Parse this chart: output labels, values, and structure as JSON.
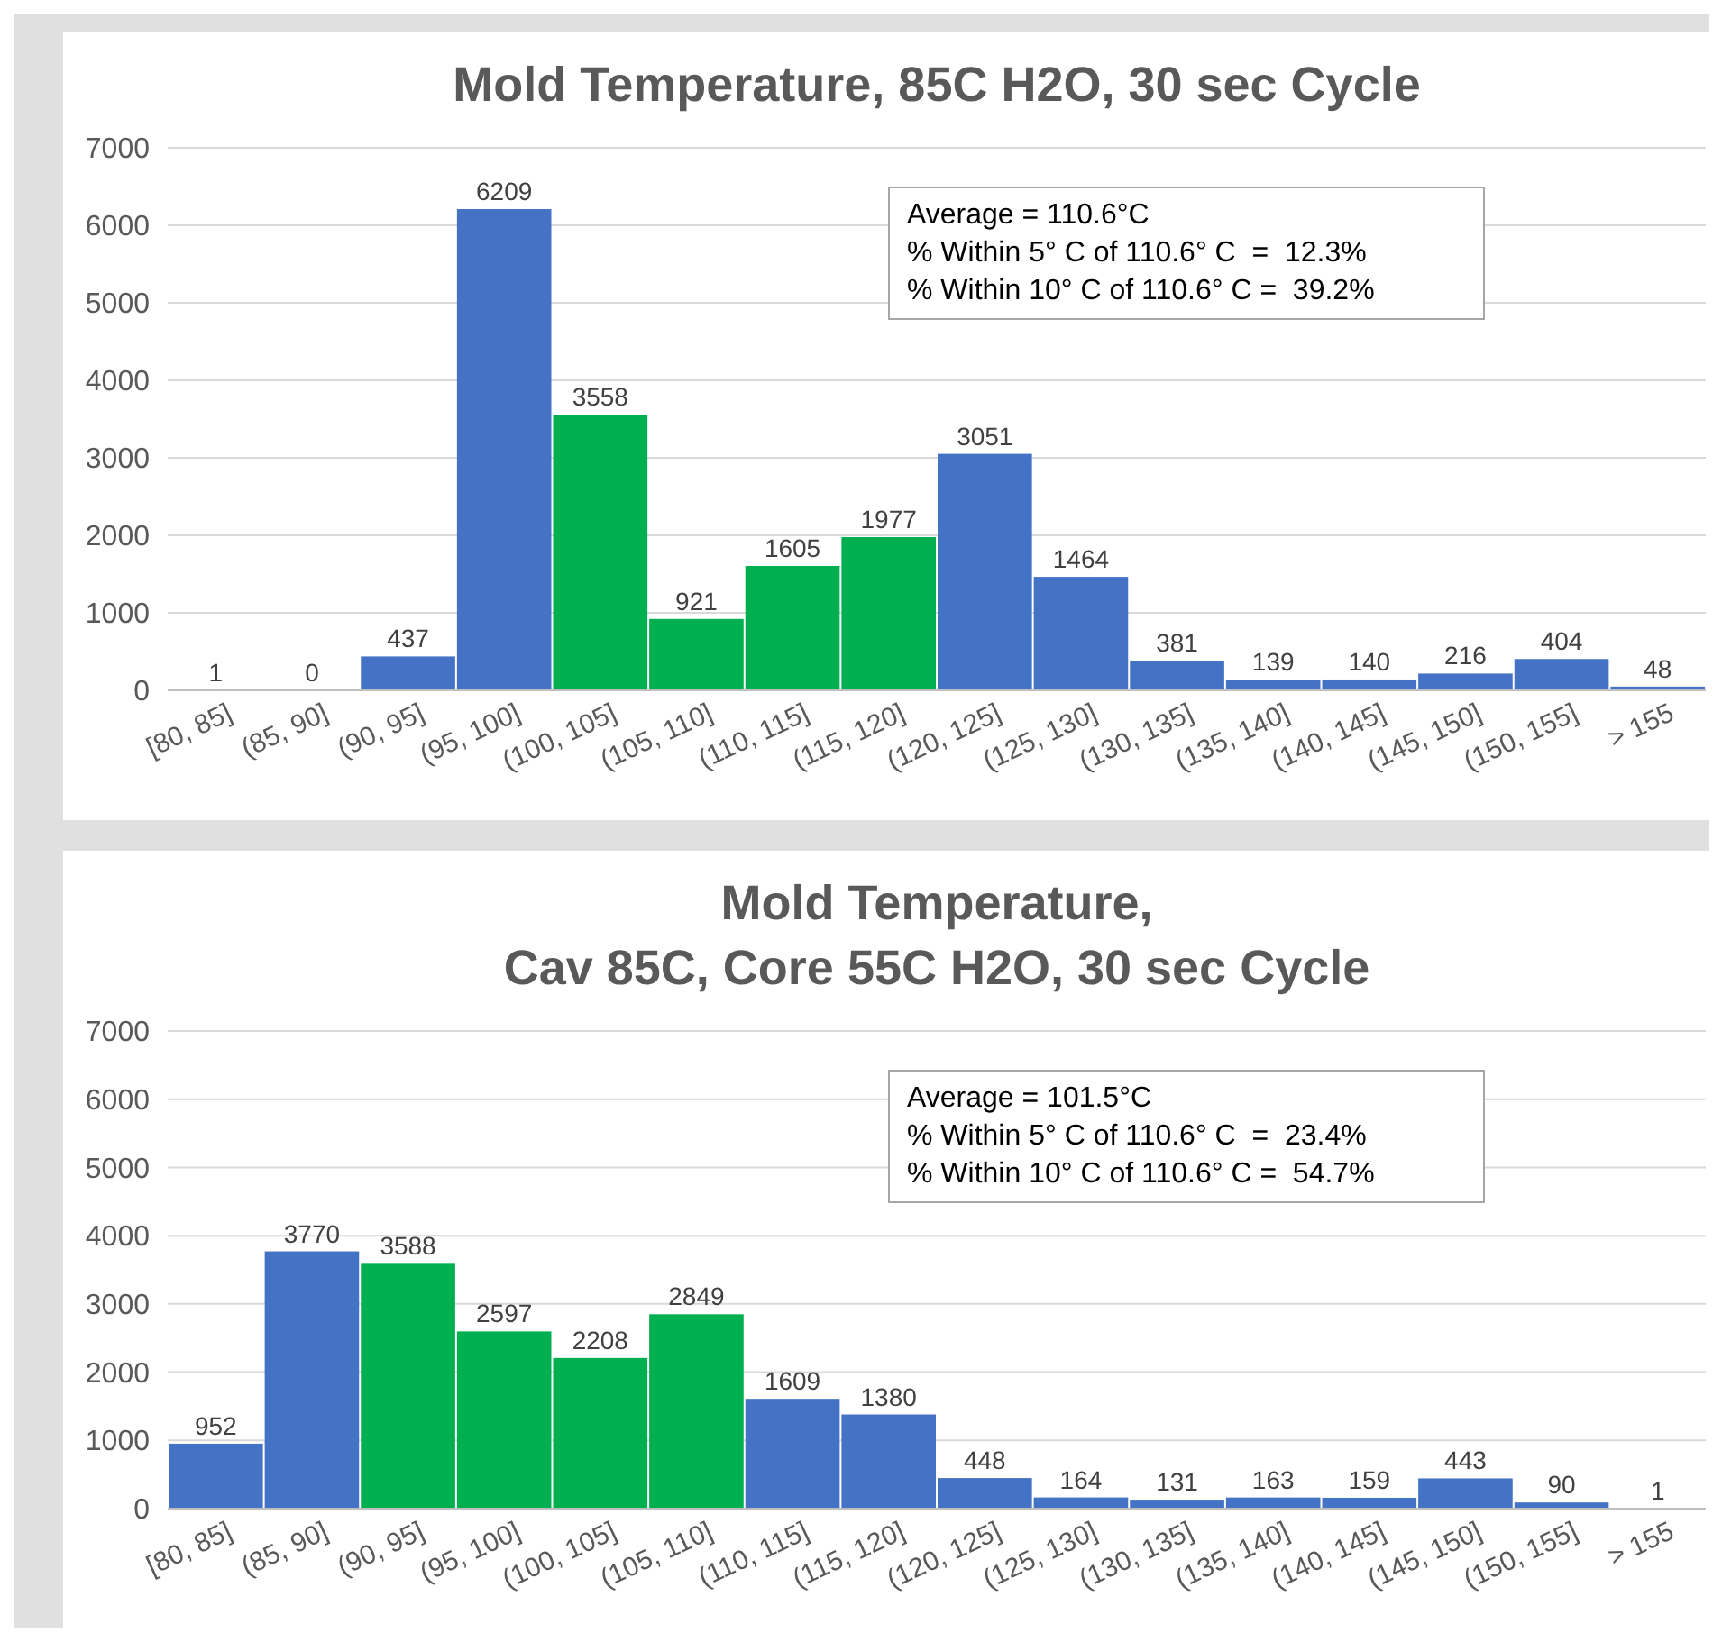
{
  "chart_data": [
    {
      "type": "bar",
      "title": "Mold Temperature, 85C H2O, 30 sec Cycle",
      "categories": [
        "[80, 85]",
        "(85, 90]",
        "(90, 95]",
        "(95, 100]",
        "(100, 105]",
        "(105, 110]",
        "(110, 115]",
        "(115, 120]",
        "(120, 125]",
        "(125, 130]",
        "(130, 135]",
        "(135, 140]",
        "(140, 145]",
        "(145, 150]",
        "(150, 155]",
        "> 155"
      ],
      "values": [
        1,
        0,
        437,
        6209,
        3558,
        921,
        1605,
        1977,
        3051,
        1464,
        381,
        139,
        140,
        216,
        404,
        48
      ],
      "colors": [
        "#4472c4",
        "#4472c4",
        "#4472c4",
        "#4472c4",
        "#00b050",
        "#00b050",
        "#00b050",
        "#00b050",
        "#4472c4",
        "#4472c4",
        "#4472c4",
        "#4472c4",
        "#4472c4",
        "#4472c4",
        "#4472c4",
        "#4472c4"
      ],
      "ylim": [
        0,
        7000
      ],
      "yticks": [
        0,
        1000,
        2000,
        3000,
        4000,
        5000,
        6000,
        7000
      ],
      "grid": "y",
      "data_labels": true,
      "annotations": [
        "Average = 110.6°C",
        "% Within 5° C of 110.6° C  =  12.3%",
        "% Within 10° C of 110.6° C =  39.2%"
      ]
    },
    {
      "type": "bar",
      "title": "Mold Temperature,\nCav 85C, Core 55C H2O, 30 sec Cycle",
      "categories": [
        "[80, 85]",
        "(85, 90]",
        "(90, 95]",
        "(95, 100]",
        "(100, 105]",
        "(105, 110]",
        "(110, 115]",
        "(115, 120]",
        "(120, 125]",
        "(125, 130]",
        "(130, 135]",
        "(135, 140]",
        "(140, 145]",
        "(145, 150]",
        "(150, 155]",
        "> 155"
      ],
      "values": [
        952,
        3770,
        3588,
        2597,
        2208,
        2849,
        1609,
        1380,
        448,
        164,
        131,
        163,
        159,
        443,
        90,
        1
      ],
      "colors": [
        "#4472c4",
        "#4472c4",
        "#00b050",
        "#00b050",
        "#00b050",
        "#00b050",
        "#4472c4",
        "#4472c4",
        "#4472c4",
        "#4472c4",
        "#4472c4",
        "#4472c4",
        "#4472c4",
        "#4472c4",
        "#4472c4",
        "#4472c4"
      ],
      "ylim": [
        0,
        7000
      ],
      "yticks": [
        0,
        1000,
        2000,
        3000,
        4000,
        5000,
        6000,
        7000
      ],
      "grid": "y",
      "data_labels": true,
      "annotations": [
        "Average = 101.5°C",
        "% Within 5° C of 110.6° C  =  23.4%",
        "% Within 10° C of 110.6° C =  54.7%"
      ]
    }
  ]
}
